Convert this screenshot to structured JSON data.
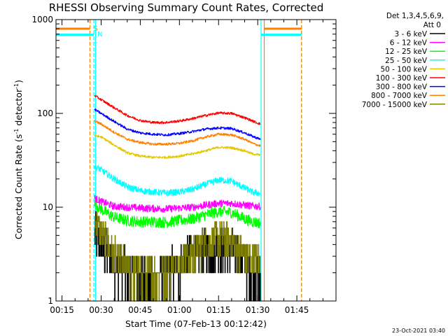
{
  "chart_data": {
    "type": "line",
    "title": "RHESSI Observing Summary Count Rates, Corrected",
    "xlabel": "Start Time (07-Feb-13 00:12:42)",
    "ylabel_main": "Corrected Count Rate (s",
    "ylabel_sup1": "-1",
    "ylabel_mid": " detector",
    "ylabel_sup2": "-1",
    "ylabel_end": ")",
    "yscale": "log",
    "ylim": [
      1,
      1000
    ],
    "xlim_minutes": [
      12.7,
      120
    ],
    "x_ticks": [
      {
        "minute": 15,
        "label": "00:15"
      },
      {
        "minute": 30,
        "label": "00:30"
      },
      {
        "minute": 45,
        "label": "00:45"
      },
      {
        "minute": 60,
        "label": "01:00"
      },
      {
        "minute": 75,
        "label": "01:15"
      },
      {
        "minute": 90,
        "label": "01:30"
      },
      {
        "minute": 105,
        "label": "01:45"
      }
    ],
    "y_ticks": [
      {
        "value": 1,
        "label": "1"
      },
      {
        "value": 10,
        "label": "10"
      },
      {
        "value": 100,
        "label": "100"
      },
      {
        "value": 1000,
        "label": "1000"
      }
    ],
    "legend": {
      "header1": "Det 1,3,4,5,6,9,",
      "header2": "Att 0",
      "placement": "right"
    },
    "series": [
      {
        "name": "3 - 6 keV",
        "color": "#000000",
        "noise": 0.55,
        "step": true,
        "points": [
          [
            27.5,
            5.5
          ],
          [
            30,
            4
          ],
          [
            35,
            2.5
          ],
          [
            40,
            2
          ],
          [
            45,
            1.8
          ],
          [
            50,
            1.7
          ],
          [
            55,
            2
          ],
          [
            60,
            2.4
          ],
          [
            65,
            3
          ],
          [
            70,
            3.5
          ],
          [
            75,
            4
          ],
          [
            80,
            3.5
          ],
          [
            85,
            2.6
          ],
          [
            88,
            1.9
          ],
          [
            91,
            1.7
          ]
        ]
      },
      {
        "name": "6 - 12 keV",
        "color": "#ff00ff",
        "noise": 0.09,
        "points": [
          [
            27.5,
            12.5
          ],
          [
            30,
            11.5
          ],
          [
            35,
            10.2
          ],
          [
            40,
            10
          ],
          [
            45,
            9.8
          ],
          [
            50,
            9.7
          ],
          [
            55,
            9.6
          ],
          [
            60,
            9.8
          ],
          [
            65,
            10
          ],
          [
            70,
            10.5
          ],
          [
            75,
            11
          ],
          [
            80,
            11
          ],
          [
            85,
            10.5
          ],
          [
            88,
            10.3
          ],
          [
            91,
            10.2
          ]
        ]
      },
      {
        "name": "12 - 25 keV",
        "color": "#00ff00",
        "noise": 0.14,
        "points": [
          [
            27.5,
            11
          ],
          [
            30,
            9.5
          ],
          [
            35,
            7.8
          ],
          [
            40,
            7.2
          ],
          [
            45,
            7
          ],
          [
            50,
            7
          ],
          [
            55,
            6.9
          ],
          [
            60,
            7.2
          ],
          [
            65,
            7.5
          ],
          [
            70,
            8.3
          ],
          [
            75,
            9
          ],
          [
            80,
            8.8
          ],
          [
            85,
            7.5
          ],
          [
            88,
            7
          ],
          [
            91,
            6.8
          ]
        ]
      },
      {
        "name": "25 - 50 keV",
        "color": "#00ffff",
        "noise": 0.08,
        "points": [
          [
            27.5,
            27
          ],
          [
            30,
            25
          ],
          [
            35,
            20
          ],
          [
            40,
            16.5
          ],
          [
            45,
            15
          ],
          [
            50,
            14.5
          ],
          [
            55,
            14.2
          ],
          [
            60,
            14.5
          ],
          [
            65,
            15.5
          ],
          [
            70,
            17.5
          ],
          [
            75,
            19.5
          ],
          [
            80,
            19
          ],
          [
            85,
            16
          ],
          [
            88,
            14.5
          ],
          [
            91,
            14
          ]
        ]
      },
      {
        "name": "50 - 100 keV",
        "color": "#e6c800",
        "noise": 0.03,
        "points": [
          [
            27.5,
            58
          ],
          [
            30,
            56
          ],
          [
            35,
            46
          ],
          [
            40,
            38
          ],
          [
            45,
            35
          ],
          [
            50,
            34
          ],
          [
            55,
            34
          ],
          [
            60,
            35
          ],
          [
            65,
            37
          ],
          [
            70,
            40
          ],
          [
            75,
            43.5
          ],
          [
            80,
            43
          ],
          [
            85,
            40
          ],
          [
            88,
            37
          ],
          [
            91,
            36
          ]
        ]
      },
      {
        "name": "100 - 300 keV",
        "color": "#ff0000",
        "noise": 0.03,
        "points": [
          [
            27.5,
            155
          ],
          [
            30,
            140
          ],
          [
            35,
            115
          ],
          [
            40,
            95
          ],
          [
            45,
            84
          ],
          [
            50,
            80
          ],
          [
            55,
            80
          ],
          [
            60,
            83
          ],
          [
            65,
            88
          ],
          [
            70,
            95
          ],
          [
            75,
            101
          ],
          [
            80,
            100
          ],
          [
            85,
            90
          ],
          [
            88,
            83
          ],
          [
            91,
            77
          ]
        ]
      },
      {
        "name": "300 - 800 keV",
        "color": "#0000ff",
        "noise": 0.03,
        "points": [
          [
            27.5,
            110
          ],
          [
            30,
            100
          ],
          [
            35,
            82
          ],
          [
            40,
            68
          ],
          [
            45,
            62
          ],
          [
            50,
            60
          ],
          [
            55,
            59
          ],
          [
            60,
            61
          ],
          [
            65,
            64
          ],
          [
            70,
            68
          ],
          [
            75,
            70
          ],
          [
            80,
            69
          ],
          [
            85,
            62
          ],
          [
            88,
            57
          ],
          [
            91,
            53
          ]
        ]
      },
      {
        "name": "800 - 7000 keV",
        "color": "#ff8000",
        "noise": 0.03,
        "points": [
          [
            27.5,
            83
          ],
          [
            30,
            77
          ],
          [
            35,
            63
          ],
          [
            40,
            53
          ],
          [
            45,
            49
          ],
          [
            50,
            47
          ],
          [
            55,
            47
          ],
          [
            60,
            48
          ],
          [
            65,
            51
          ],
          [
            70,
            56
          ],
          [
            75,
            60
          ],
          [
            80,
            59
          ],
          [
            85,
            53
          ],
          [
            88,
            48
          ],
          [
            91,
            45
          ]
        ]
      },
      {
        "name": "7000 - 15000 keV",
        "color": "#808000",
        "noise": 0.45,
        "step": true,
        "points": [
          [
            27.5,
            7.5
          ],
          [
            30,
            5
          ],
          [
            35,
            3
          ],
          [
            40,
            2.2
          ],
          [
            45,
            1.9
          ],
          [
            50,
            1.9
          ],
          [
            55,
            2.1
          ],
          [
            60,
            2.5
          ],
          [
            65,
            3.2
          ],
          [
            70,
            4
          ],
          [
            75,
            4.8
          ],
          [
            80,
            4.2
          ],
          [
            85,
            3
          ],
          [
            88,
            2.6
          ],
          [
            91,
            2.6
          ]
        ]
      }
    ],
    "markers": [
      {
        "minute": 25.7,
        "color": "#ff8000",
        "style": "dashed",
        "label": "S"
      },
      {
        "minute": 27.2,
        "color": "#00ffff",
        "style": "dashed",
        "label": "N"
      },
      {
        "minute": 27.9,
        "color": "#00ffff",
        "style": "solid"
      },
      {
        "minute": 91.3,
        "color": "#00ffff",
        "style": "solid"
      },
      {
        "minute": 92.5,
        "color": "#ff8000",
        "style": "solid"
      },
      {
        "minute": 106.8,
        "color": "#00ffff",
        "style": "dashed"
      },
      {
        "minute": 106.8,
        "color": "#ff8000",
        "style": "dashed"
      }
    ],
    "flag_bars": [
      {
        "color": "#ff8000",
        "value": 800,
        "ranges": [
          [
            12.7,
            25.7
          ],
          [
            92.5,
            106.8
          ]
        ]
      },
      {
        "color": "#00ffff",
        "value": 690,
        "ranges": [
          [
            12.7,
            27.2
          ],
          [
            91.3,
            106.8
          ]
        ]
      }
    ],
    "footer": "23-Oct-2021 03:40"
  }
}
